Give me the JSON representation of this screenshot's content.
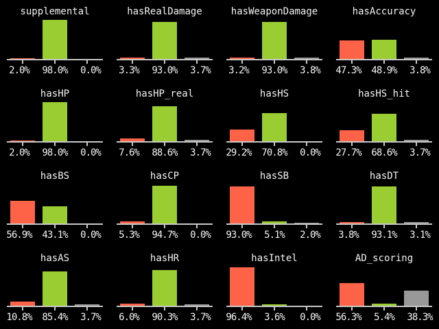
{
  "page": {
    "background_color": "#000000",
    "text_color": "#f5f5f5",
    "axis_color": "#c9c9c9"
  },
  "chart_data": {
    "type": "bar",
    "layout": {
      "grid": "4x4",
      "ylim": [
        0,
        100
      ],
      "grid_lines": false,
      "legend": "none",
      "bar_colors": [
        "#ff6347",
        "#9acd32",
        "#999999"
      ],
      "bar_color_names": [
        "red",
        "green",
        "gray"
      ],
      "axis_color": "#c9c9c9",
      "background": "#000000"
    },
    "charts": [
      {
        "title": "supplemental",
        "values": [
          2.0,
          98.0,
          0.0
        ],
        "labels": [
          "2.0%",
          "98.0%",
          "0.0%"
        ]
      },
      {
        "title": "hasRealDamage",
        "values": [
          3.3,
          93.0,
          3.7
        ],
        "labels": [
          "3.3%",
          "93.0%",
          "3.7%"
        ]
      },
      {
        "title": "hasWeaponDamage",
        "values": [
          3.2,
          93.0,
          3.8
        ],
        "labels": [
          "3.2%",
          "93.0%",
          "3.8%"
        ]
      },
      {
        "title": "hasAccuracy",
        "values": [
          47.3,
          48.9,
          3.8
        ],
        "labels": [
          "47.3%",
          "48.9%",
          "3.8%"
        ]
      },
      {
        "title": "hasHP",
        "values": [
          2.0,
          98.0,
          0.0
        ],
        "labels": [
          "2.0%",
          "98.0%",
          "0.0%"
        ]
      },
      {
        "title": "hasHP_real",
        "values": [
          7.6,
          88.6,
          3.7
        ],
        "labels": [
          "7.6%",
          "88.6%",
          "3.7%"
        ]
      },
      {
        "title": "hasHS",
        "values": [
          29.2,
          70.8,
          0.0
        ],
        "labels": [
          "29.2%",
          "70.8%",
          "0.0%"
        ]
      },
      {
        "title": "hasHS_hit",
        "values": [
          27.7,
          68.6,
          3.7
        ],
        "labels": [
          "27.7%",
          "68.6%",
          "3.7%"
        ]
      },
      {
        "title": "hasBS",
        "values": [
          56.9,
          43.1,
          0.0
        ],
        "labels": [
          "56.9%",
          "43.1%",
          "0.0%"
        ]
      },
      {
        "title": "hasCP",
        "values": [
          5.3,
          94.7,
          0.0
        ],
        "labels": [
          "5.3%",
          "94.7%",
          "0.0%"
        ]
      },
      {
        "title": "hasSB",
        "values": [
          93.0,
          5.1,
          2.0
        ],
        "labels": [
          "93.0%",
          "5.1%",
          "2.0%"
        ]
      },
      {
        "title": "hasDT",
        "values": [
          3.8,
          93.1,
          3.1
        ],
        "labels": [
          "3.8%",
          "93.1%",
          "3.1%"
        ]
      },
      {
        "title": "hasAS",
        "values": [
          10.8,
          85.4,
          3.7
        ],
        "labels": [
          "10.8%",
          "85.4%",
          "3.7%"
        ]
      },
      {
        "title": "hasHR",
        "values": [
          6.0,
          90.3,
          3.7
        ],
        "labels": [
          "6.0%",
          "90.3%",
          "3.7%"
        ]
      },
      {
        "title": "hasIntel",
        "values": [
          96.4,
          3.6,
          0.0
        ],
        "labels": [
          "96.4%",
          "3.6%",
          "0.0%"
        ]
      },
      {
        "title": "AD_scoring",
        "values": [
          56.3,
          5.4,
          38.3
        ],
        "labels": [
          "56.3%",
          "5.4%",
          "38.3%"
        ]
      }
    ]
  }
}
